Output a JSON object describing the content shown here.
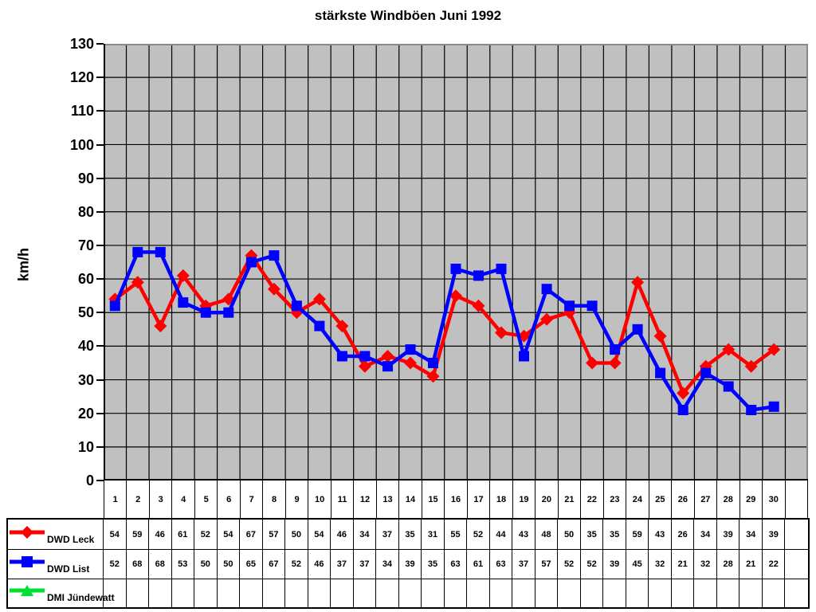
{
  "chart_data": {
    "type": "line",
    "title": "stärkste Windböen Juni 1992",
    "ylabel": "km/h",
    "ylim": [
      0,
      130
    ],
    "ytick_step": 10,
    "x_slots": 31,
    "categories": [
      "1",
      "2",
      "3",
      "4",
      "5",
      "6",
      "7",
      "8",
      "9",
      "10",
      "11",
      "12",
      "13",
      "14",
      "15",
      "16",
      "17",
      "18",
      "19",
      "20",
      "21",
      "22",
      "23",
      "24",
      "25",
      "26",
      "27",
      "28",
      "29",
      "30",
      ""
    ],
    "grid": true,
    "plot_bg_color": "#c0c0c0",
    "gridline_color": "#000000",
    "legend_position": "bottom-table",
    "series": [
      {
        "name": "DWD Leck",
        "color": "#ff0000",
        "marker": "diamond",
        "values": [
          54,
          59,
          46,
          61,
          52,
          54,
          67,
          57,
          50,
          54,
          46,
          34,
          37,
          35,
          31,
          55,
          52,
          44,
          43,
          48,
          50,
          35,
          35,
          59,
          43,
          26,
          34,
          39,
          34,
          39
        ]
      },
      {
        "name": "DWD List",
        "color": "#0000ff",
        "marker": "square",
        "values": [
          52,
          68,
          68,
          53,
          50,
          50,
          65,
          67,
          52,
          46,
          37,
          37,
          34,
          39,
          35,
          63,
          61,
          63,
          37,
          57,
          52,
          52,
          39,
          45,
          32,
          21,
          32,
          28,
          21,
          22
        ]
      },
      {
        "name": "DMI Jündewatt",
        "color": "#00e032",
        "marker": "triangle",
        "values": []
      }
    ]
  }
}
